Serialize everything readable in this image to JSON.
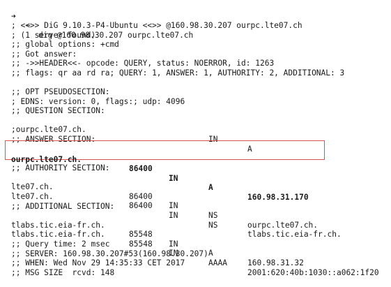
{
  "prompt": {
    "arrow": "➜",
    "cwd": "~",
    "command": "dig @160.98.30.207 ourpc.lte07.ch"
  },
  "header": {
    "banner": "; <<>> DiG 9.10.3-P4-Ubuntu <<>> @160.98.30.207 ourpc.lte07.ch",
    "servers_found": "; (1 server found)",
    "global_options": ";; global options: +cmd",
    "got_answer": ";; Got answer:",
    "header_line": ";; ->>HEADER<<- opcode: QUERY, status: NOERROR, id: 1263",
    "flags_line": ";; flags: qr aa rd ra; QUERY: 1, ANSWER: 1, AUTHORITY: 2, ADDITIONAL: 3"
  },
  "opt": {
    "title": ";; OPT PSEUDOSECTION:",
    "edns": "; EDNS: version: 0, flags:; udp: 4096"
  },
  "question": {
    "title": ";; QUESTION SECTION:",
    "name": ";ourpc.lte07.ch.",
    "class": "IN",
    "type": "A"
  },
  "answer": {
    "title": ";; ANSWER SECTION:",
    "records": [
      {
        "name": "ourpc.lte07.ch.",
        "ttl": "86400",
        "class": "IN",
        "type": "A",
        "data": "160.98.31.170"
      }
    ]
  },
  "authority": {
    "title": ";; AUTHORITY SECTION:",
    "records": [
      {
        "name": "lte07.ch.",
        "ttl": "86400",
        "class": "IN",
        "type": "NS",
        "data": "ourpc.lte07.ch."
      },
      {
        "name": "lte07.ch.",
        "ttl": "86400",
        "class": "IN",
        "type": "NS",
        "data": "tlabs.tic.eia-fr.ch."
      }
    ]
  },
  "additional": {
    "title": ";; ADDITIONAL SECTION:",
    "records": [
      {
        "name": "tlabs.tic.eia-fr.ch.",
        "ttl": "85548",
        "class": "IN",
        "type": "A",
        "data": "160.98.31.32"
      },
      {
        "name": "tlabs.tic.eia-fr.ch.",
        "ttl": "85548",
        "class": "IN",
        "type": "AAAA",
        "data": "2001:620:40b:1030::a062:1f20"
      }
    ]
  },
  "stats": {
    "query_time": ";; Query time: 2 msec",
    "server": ";; SERVER: 160.98.30.207#53(160.98.30.207)",
    "when": ";; WHEN: Wed Nov 29 14:35:33 CET 2017",
    "msg_size": ";; MSG SIZE  rcvd: 148"
  },
  "colors": {
    "highlight_border": "#d9534f",
    "text": "#1a1a1a",
    "background": "#ffffff"
  }
}
